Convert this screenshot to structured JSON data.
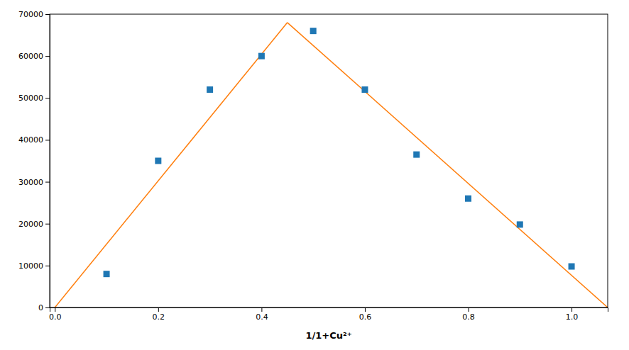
{
  "chart_data": {
    "type": "scatter",
    "x_label": "1/1+Cu²⁺",
    "series": [
      {
        "type": "line",
        "x": [
          0.0,
          0.45
        ],
        "values": [
          0,
          68000
        ]
      },
      {
        "type": "line",
        "x": [
          0.45,
          1.07
        ],
        "values": [
          68000,
          0
        ]
      },
      {
        "type": "scatter",
        "marker": "square",
        "x": [
          0.1,
          0.2,
          0.3,
          0.4,
          0.5,
          0.6,
          0.7,
          0.8,
          0.9,
          1.0
        ],
        "values": [
          8000,
          35000,
          52000,
          60000,
          66000,
          52000,
          36500,
          26000,
          19800,
          9800
        ]
      }
    ],
    "xlim": [
      -0.01,
      1.07
    ],
    "ylim": [
      0,
      70000
    ],
    "xticks": [
      {
        "value": 0.0,
        "label": "0.0"
      },
      0.2,
      0.4,
      0.6,
      0.8,
      {
        "value": 1.0,
        "label": "1.0"
      }
    ],
    "yticks": [
      0,
      10000,
      20000,
      30000,
      40000,
      50000,
      60000,
      70000
    ],
    "grid": false
  }
}
